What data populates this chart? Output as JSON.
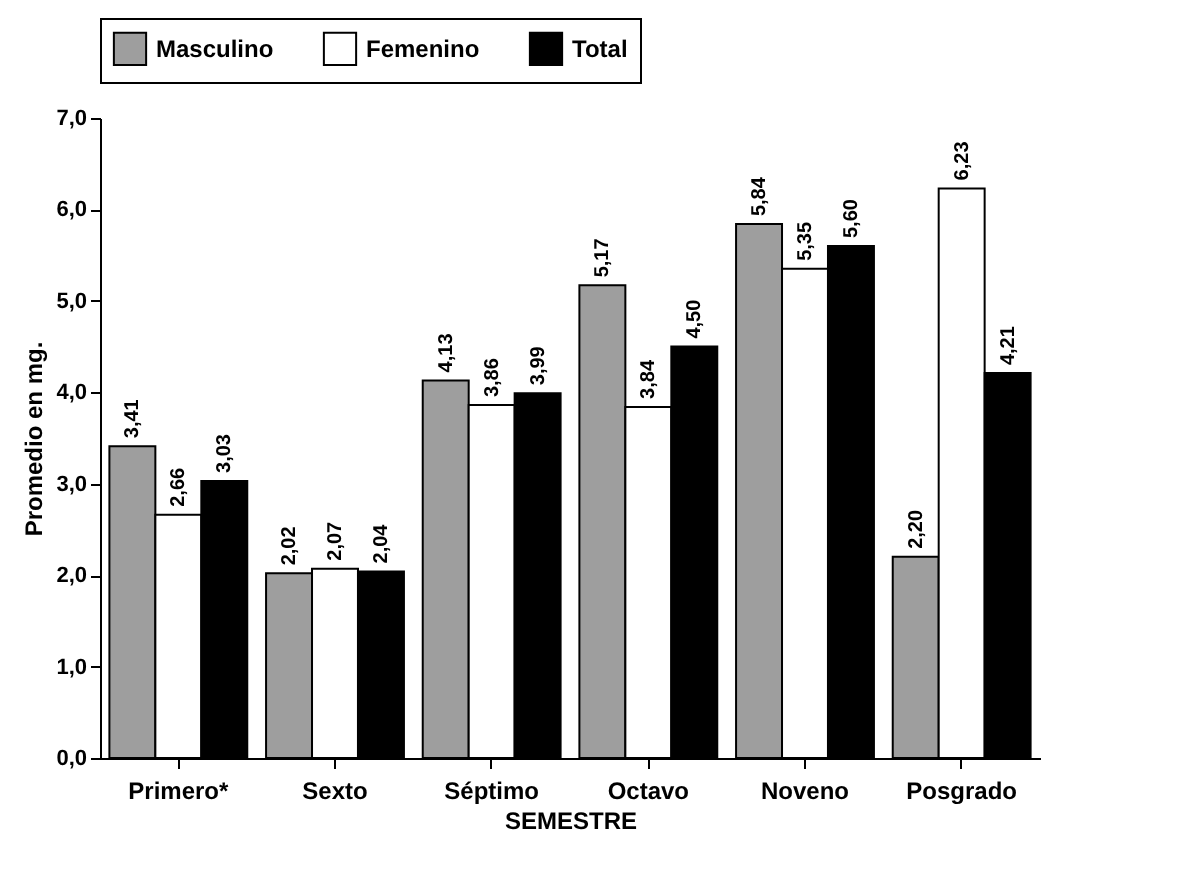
{
  "chart_data": {
    "type": "bar",
    "xlabel": "SEMESTRE",
    "ylabel": "Promedio en mg.",
    "categories": [
      "Primero*",
      "Sexto",
      "Séptimo",
      "Octavo",
      "Noveno",
      "Posgrado"
    ],
    "series": [
      {
        "name": "Masculino",
        "color": "#9e9e9e",
        "values": [
          3.41,
          2.02,
          4.13,
          5.17,
          5.84,
          2.2
        ],
        "value_labels": [
          "3,41",
          "2,02",
          "4,13",
          "5,17",
          "5,84",
          "2,20"
        ]
      },
      {
        "name": "Femenino",
        "color": "#ffffff",
        "values": [
          2.66,
          2.07,
          3.86,
          3.84,
          5.35,
          6.23
        ],
        "value_labels": [
          "2,66",
          "2,07",
          "3,86",
          "3,84",
          "5,35",
          "6,23"
        ]
      },
      {
        "name": "Total",
        "color": "#000000",
        "values": [
          3.03,
          2.04,
          3.99,
          4.5,
          5.6,
          4.21
        ],
        "value_labels": [
          "3,03",
          "2,04",
          "3,99",
          "4,50",
          "5,60",
          "4,21"
        ]
      }
    ],
    "ylim": [
      0,
      7
    ],
    "yticks": [
      {
        "value": 0,
        "label": "0,0"
      },
      {
        "value": 1,
        "label": "1,0"
      },
      {
        "value": 2,
        "label": "2,0"
      },
      {
        "value": 3,
        "label": "3,0"
      },
      {
        "value": 4,
        "label": "4,0"
      },
      {
        "value": 5,
        "label": "5,0"
      },
      {
        "value": 6,
        "label": "6,0"
      },
      {
        "value": 7,
        "label": "7,0"
      }
    ],
    "legend": "top",
    "grid": false
  }
}
